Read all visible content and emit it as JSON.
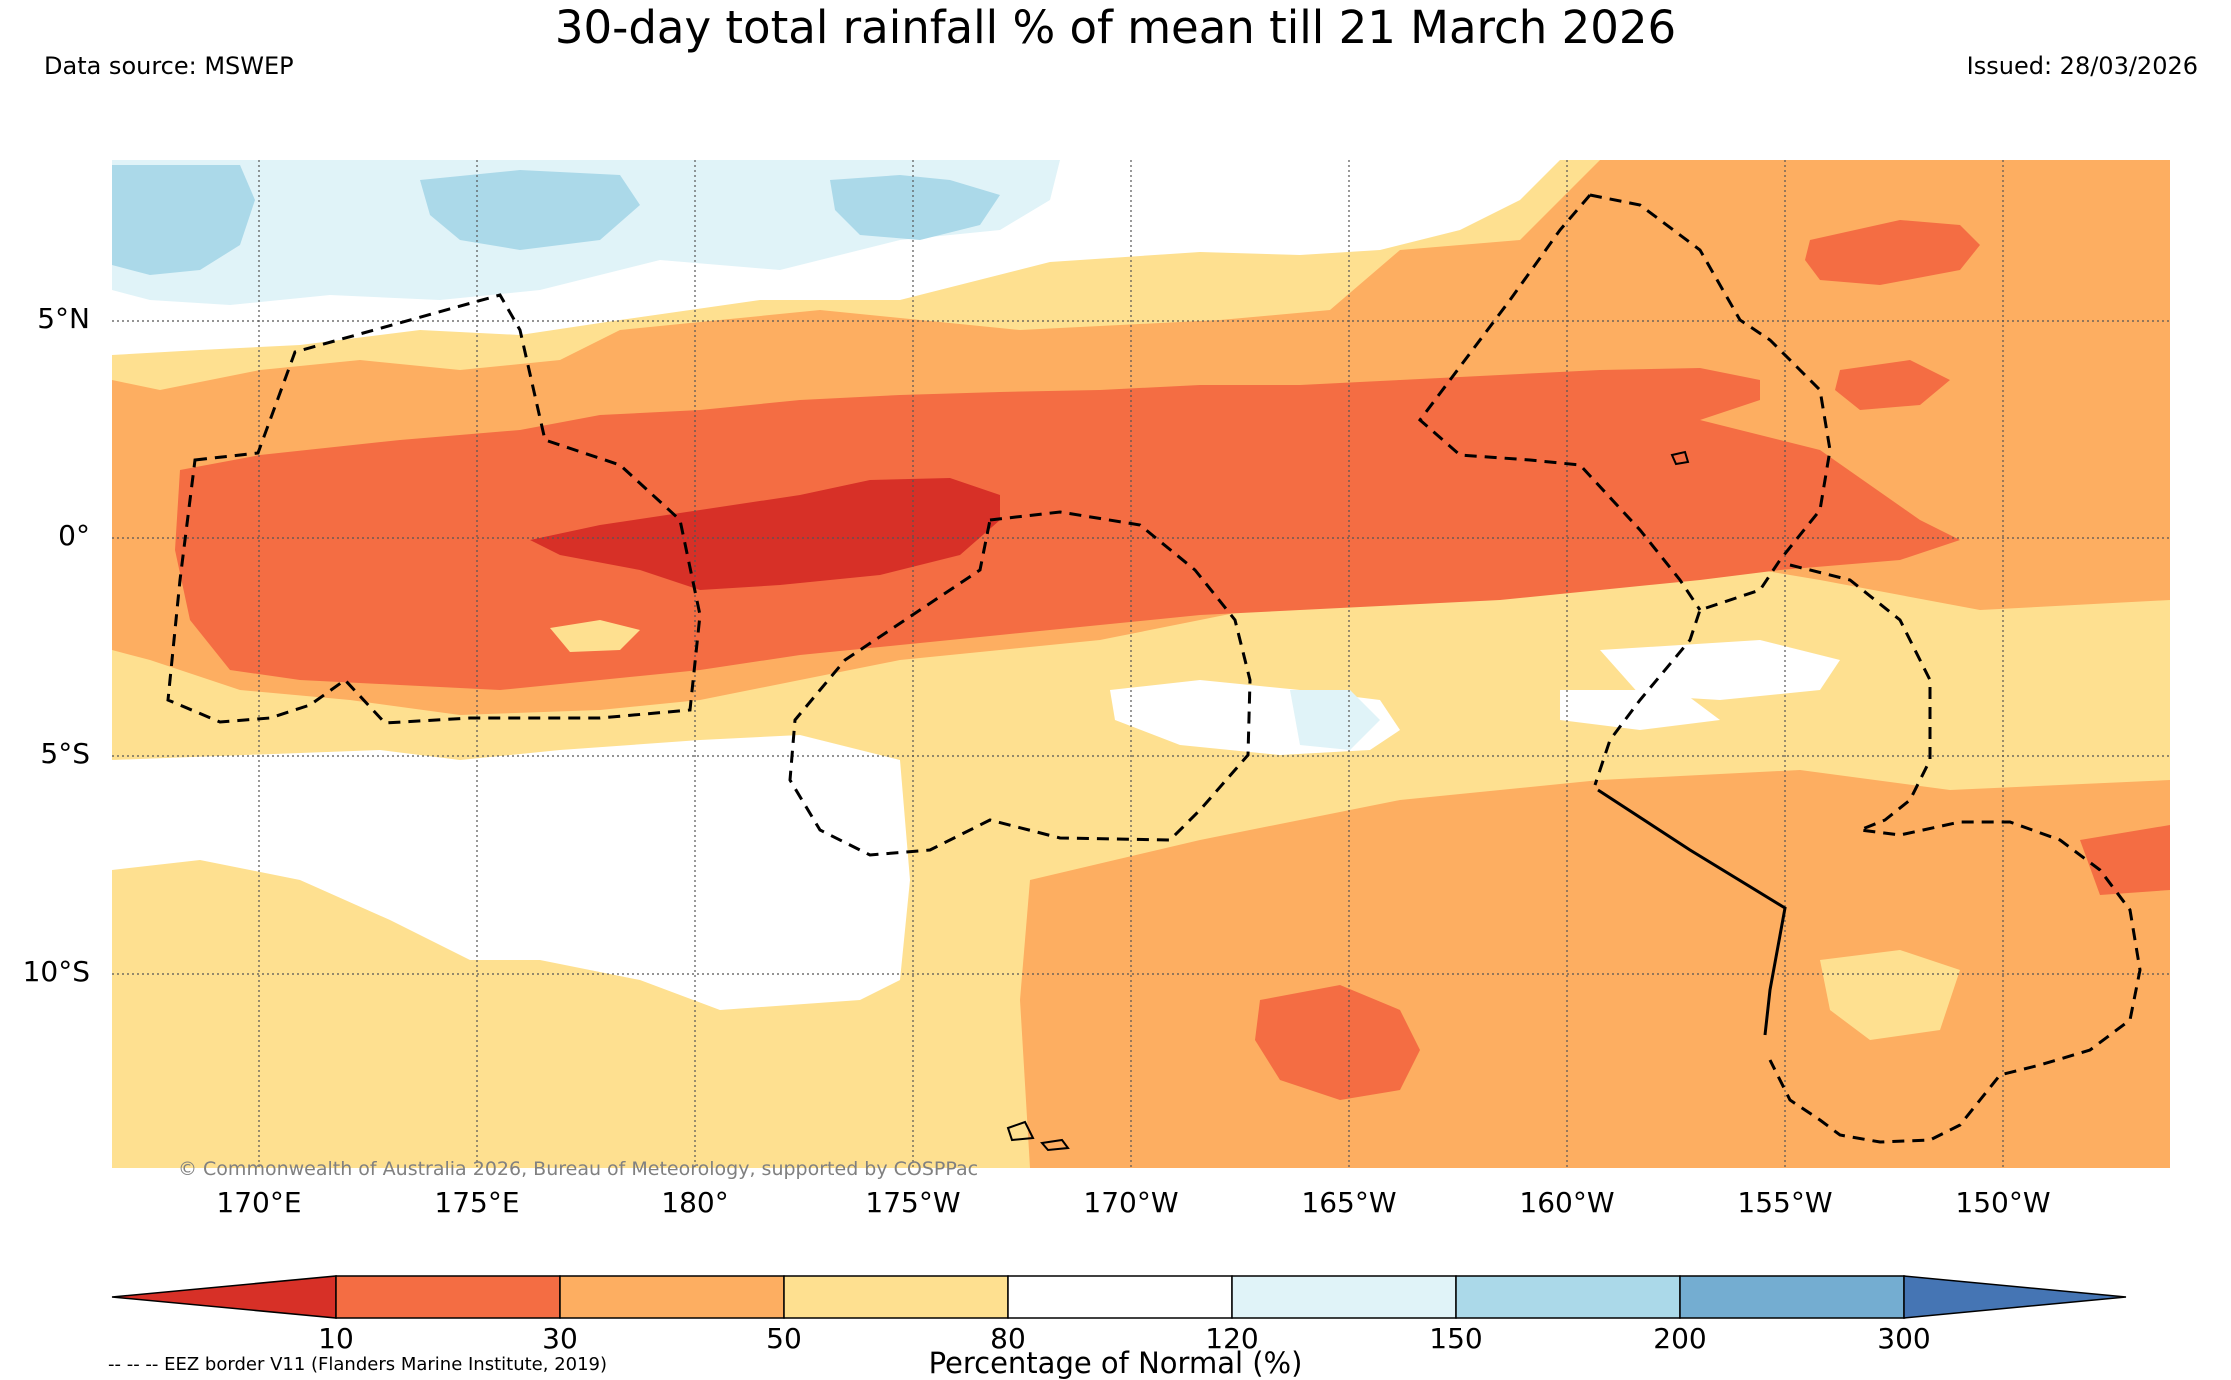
{
  "title": "30-day total rainfall % of mean till 21 March 2026",
  "data_source": "Data source: MSWEP",
  "issued": "Issued: 28/03/2026",
  "credit": "© Commonwealth of Australia 2026, Bureau of Meteorology, supported by COSPPac",
  "lat_labels": [
    "5°N",
    "0°",
    "5°S",
    "10°S"
  ],
  "lon_labels": [
    "170°E",
    "175°E",
    "180°",
    "175°W",
    "170°W",
    "165°W",
    "160°W",
    "155°W",
    "150°W"
  ],
  "colorbar": {
    "label": "Percentage of Normal (%)",
    "ticks": [
      "10",
      "30",
      "50",
      "80",
      "120",
      "150",
      "200",
      "300"
    ],
    "colors": [
      "#d73027",
      "#f46d43",
      "#fdae61",
      "#fee090",
      "#ffffff",
      "#e0f3f8",
      "#abd9e9",
      "#74add1",
      "#4575b4"
    ]
  },
  "eez_note": "-- -- -- EEZ border V11 (Flanders Marine Institute, 2019)"
}
